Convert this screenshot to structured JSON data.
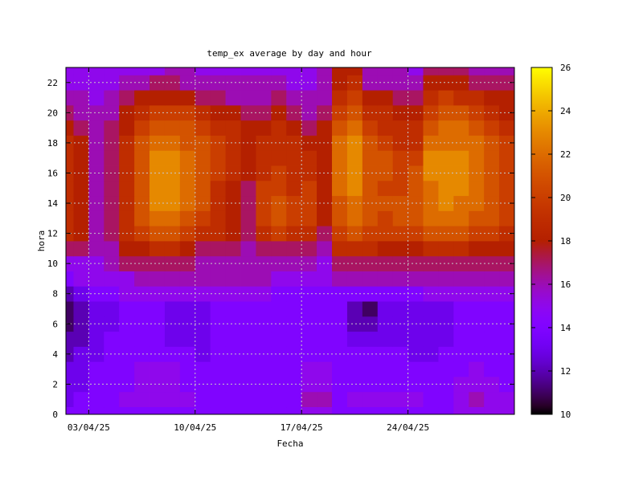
{
  "chart_data": {
    "type": "heatmap",
    "title": "temp_ex average by day and hour",
    "xlabel": "Fecha",
    "ylabel": "hora",
    "x_ticks": [
      "03/04/25",
      "10/04/25",
      "17/04/25",
      "24/04/25"
    ],
    "y_ticks": [
      0,
      2,
      4,
      6,
      8,
      10,
      12,
      14,
      16,
      18,
      20,
      22
    ],
    "y_range": [
      0,
      23
    ],
    "colorbar": {
      "min": 10,
      "max": 26,
      "ticks": [
        10,
        12,
        14,
        16,
        18,
        20,
        22,
        24,
        26
      ],
      "palette": "black-purple-red-orange-yellow"
    },
    "grid": true,
    "days": [
      "01/04/25",
      "02/04/25",
      "03/04/25",
      "04/04/25",
      "05/04/25",
      "06/04/25",
      "07/04/25",
      "08/04/25",
      "09/04/25",
      "10/04/25",
      "11/04/25",
      "12/04/25",
      "13/04/25",
      "14/04/25",
      "15/04/25",
      "16/04/25",
      "17/04/25",
      "18/04/25",
      "19/04/25",
      "20/04/25",
      "21/04/25",
      "22/04/25",
      "23/04/25",
      "24/04/25",
      "25/04/25",
      "26/04/25",
      "27/04/25",
      "28/04/25",
      "29/04/25",
      "30/04/25"
    ],
    "hours": [
      0,
      1,
      2,
      3,
      4,
      5,
      6,
      7,
      8,
      9,
      10,
      11,
      12,
      13,
      14,
      15,
      16,
      17,
      18,
      19,
      20,
      21,
      22,
      23
    ],
    "values": [
      [
        14,
        14,
        14,
        14,
        14,
        14,
        14,
        14,
        14,
        14,
        14,
        14,
        14,
        14,
        14,
        14,
        15,
        15,
        14,
        14,
        14,
        14,
        14,
        14,
        14,
        14,
        15,
        15,
        15,
        15
      ],
      [
        13,
        14,
        14,
        14,
        15,
        15,
        15,
        15,
        15,
        14,
        14,
        14,
        14,
        14,
        14,
        14,
        16,
        16,
        14,
        15,
        15,
        15,
        15,
        15,
        14,
        14,
        15,
        16,
        15,
        15
      ],
      [
        13,
        13,
        14,
        14,
        14,
        15,
        15,
        15,
        14,
        14,
        14,
        14,
        14,
        14,
        14,
        14,
        15,
        15,
        14,
        14,
        14,
        14,
        14,
        14,
        14,
        14,
        15,
        15,
        15,
        14
      ],
      [
        13,
        13,
        14,
        14,
        14,
        15,
        15,
        15,
        14,
        14,
        14,
        14,
        14,
        14,
        14,
        14,
        15,
        15,
        14,
        14,
        14,
        14,
        14,
        14,
        14,
        14,
        14,
        15,
        14,
        14
      ],
      [
        12,
        13,
        13,
        14,
        14,
        14,
        14,
        14,
        14,
        13,
        14,
        14,
        14,
        14,
        14,
        14,
        14,
        14,
        14,
        14,
        14,
        14,
        14,
        13,
        13,
        14,
        14,
        14,
        14,
        14
      ],
      [
        12,
        12,
        13,
        14,
        14,
        14,
        14,
        13,
        13,
        13,
        14,
        14,
        14,
        14,
        14,
        14,
        14,
        14,
        14,
        13,
        13,
        13,
        13,
        13,
        13,
        13,
        14,
        14,
        14,
        14
      ],
      [
        11,
        12,
        13,
        13,
        14,
        14,
        14,
        13,
        13,
        13,
        14,
        14,
        14,
        14,
        14,
        14,
        14,
        14,
        14,
        12,
        12,
        13,
        13,
        13,
        13,
        13,
        14,
        14,
        14,
        14
      ],
      [
        11,
        12,
        13,
        13,
        14,
        14,
        14,
        13,
        13,
        13,
        14,
        14,
        14,
        14,
        14,
        14,
        14,
        14,
        14,
        12,
        11,
        13,
        13,
        13,
        13,
        13,
        14,
        14,
        14,
        14
      ],
      [
        12,
        13,
        14,
        14,
        15,
        15,
        15,
        15,
        15,
        15,
        15,
        15,
        15,
        15,
        14,
        14,
        14,
        14,
        14,
        14,
        14,
        14,
        14,
        14,
        15,
        15,
        15,
        15,
        15,
        15
      ],
      [
        14,
        15,
        15,
        15,
        15,
        16,
        16,
        16,
        16,
        16,
        16,
        16,
        16,
        16,
        15,
        15,
        15,
        15,
        16,
        16,
        16,
        16,
        16,
        16,
        16,
        16,
        16,
        16,
        16,
        16
      ],
      [
        15,
        15,
        15,
        16,
        17,
        17,
        17,
        17,
        17,
        16,
        16,
        16,
        16,
        16,
        16,
        16,
        16,
        15,
        17,
        17,
        17,
        17,
        17,
        17,
        17,
        17,
        17,
        17,
        17,
        17
      ],
      [
        17,
        17,
        16,
        16,
        18,
        18,
        19,
        19,
        18,
        17,
        17,
        17,
        16,
        17,
        17,
        17,
        17,
        16,
        19,
        19,
        19,
        18,
        18,
        18,
        19,
        19,
        19,
        18,
        18,
        18
      ],
      [
        19,
        18,
        16,
        17,
        19,
        20,
        21,
        21,
        20,
        19,
        19,
        18,
        17,
        19,
        20,
        19,
        19,
        17,
        20,
        21,
        20,
        20,
        20,
        20,
        21,
        21,
        21,
        20,
        20,
        19
      ],
      [
        19,
        18,
        16,
        17,
        19,
        21,
        22,
        22,
        21,
        20,
        19,
        18,
        17,
        20,
        21,
        20,
        20,
        18,
        21,
        22,
        21,
        20,
        21,
        21,
        22,
        22,
        22,
        21,
        21,
        20
      ],
      [
        19,
        18,
        16,
        17,
        19,
        21,
        23,
        23,
        22,
        21,
        19,
        18,
        17,
        20,
        21,
        20,
        20,
        18,
        21,
        22,
        21,
        21,
        21,
        21,
        22,
        23,
        22,
        22,
        21,
        20
      ],
      [
        19,
        18,
        16,
        17,
        19,
        21,
        23,
        23,
        22,
        21,
        19,
        18,
        17,
        20,
        20,
        19,
        20,
        18,
        22,
        23,
        21,
        20,
        20,
        21,
        22,
        23,
        23,
        22,
        21,
        20
      ],
      [
        19,
        18,
        16,
        17,
        19,
        21,
        23,
        23,
        22,
        21,
        20,
        19,
        18,
        19,
        20,
        19,
        19,
        18,
        22,
        23,
        21,
        21,
        20,
        21,
        23,
        23,
        23,
        22,
        21,
        20
      ],
      [
        19,
        18,
        16,
        17,
        19,
        21,
        23,
        23,
        22,
        21,
        20,
        19,
        18,
        19,
        19,
        19,
        19,
        18,
        22,
        23,
        21,
        21,
        20,
        20,
        23,
        23,
        23,
        22,
        21,
        20
      ],
      [
        19,
        18,
        16,
        17,
        19,
        21,
        22,
        22,
        21,
        21,
        20,
        19,
        18,
        19,
        19,
        19,
        18,
        18,
        22,
        23,
        21,
        20,
        19,
        19,
        22,
        22,
        22,
        22,
        21,
        20
      ],
      [
        18,
        17,
        16,
        17,
        18,
        20,
        21,
        21,
        21,
        20,
        19,
        19,
        18,
        18,
        19,
        18,
        17,
        18,
        21,
        22,
        20,
        19,
        19,
        19,
        21,
        22,
        22,
        21,
        20,
        19
      ],
      [
        17,
        16,
        16,
        16,
        18,
        19,
        20,
        20,
        20,
        19,
        18,
        18,
        17,
        17,
        18,
        17,
        16,
        17,
        20,
        21,
        19,
        19,
        18,
        18,
        20,
        21,
        21,
        20,
        19,
        18
      ],
      [
        16,
        16,
        15,
        16,
        17,
        18,
        18,
        18,
        18,
        17,
        17,
        16,
        16,
        16,
        17,
        16,
        16,
        16,
        19,
        20,
        18,
        18,
        17,
        17,
        19,
        20,
        19,
        19,
        18,
        18
      ],
      [
        15,
        15,
        15,
        15,
        16,
        16,
        17,
        17,
        16,
        16,
        16,
        16,
        16,
        16,
        16,
        15,
        15,
        16,
        18,
        19,
        16,
        16,
        16,
        16,
        18,
        18,
        18,
        17,
        17,
        17
      ],
      [
        15,
        15,
        15,
        15,
        15,
        15,
        15,
        16,
        16,
        15,
        15,
        15,
        15,
        15,
        15,
        15,
        15,
        16,
        18,
        18,
        16,
        16,
        16,
        15,
        17,
        17,
        17,
        16,
        16,
        16
      ]
    ]
  }
}
